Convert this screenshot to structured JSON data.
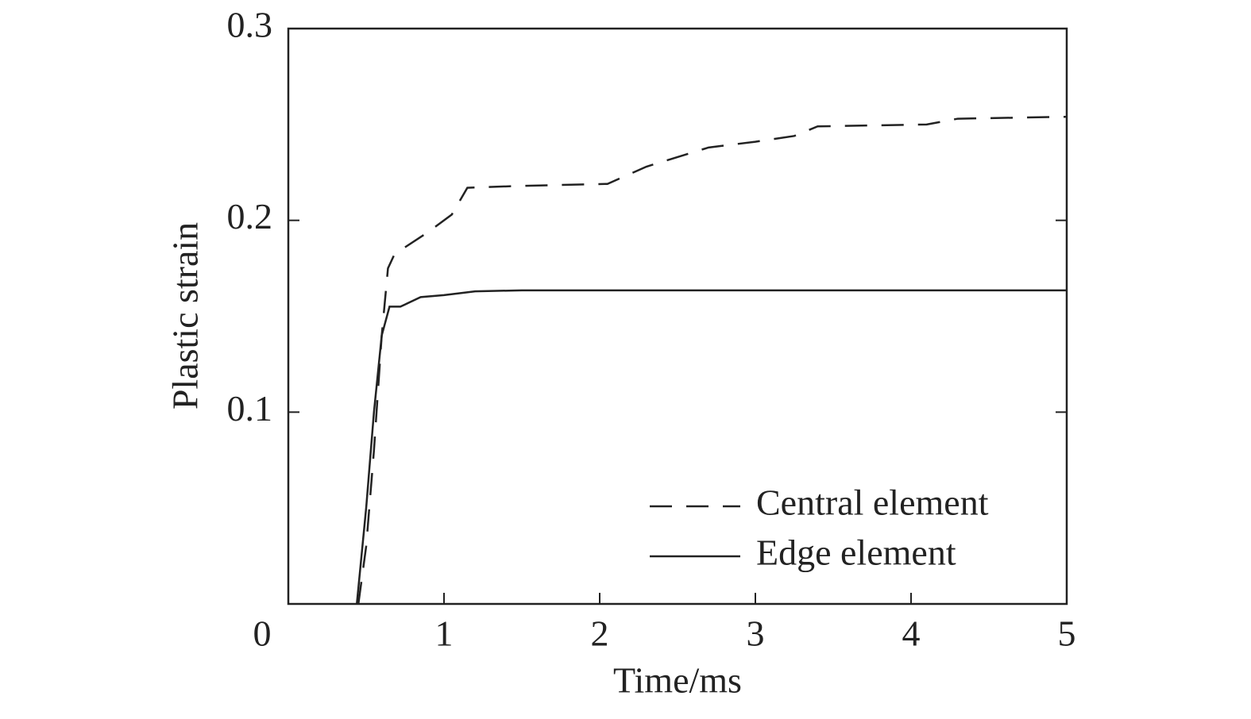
{
  "chart_data": {
    "type": "line",
    "xlabel": "Time/ms",
    "ylabel": "Plastic strain",
    "xlim": [
      0,
      5
    ],
    "ylim": [
      0,
      0.3
    ],
    "xticks": [
      0,
      1,
      2,
      3,
      4,
      5
    ],
    "yticks": [
      0.1,
      0.2,
      0.3
    ],
    "legend": "lower right",
    "series": [
      {
        "name": "Central element",
        "color": "#222222",
        "dash": true,
        "x": [
          0.45,
          0.5,
          0.55,
          0.6,
          0.64,
          0.68,
          0.75,
          0.9,
          1.05,
          1.15,
          1.5,
          2.05,
          2.3,
          2.7,
          3.0,
          3.25,
          3.4,
          4.1,
          4.3,
          5.0
        ],
        "values": [
          0,
          0.03,
          0.08,
          0.14,
          0.175,
          0.182,
          0.186,
          0.194,
          0.203,
          0.217,
          0.218,
          0.219,
          0.228,
          0.238,
          0.241,
          0.244,
          0.249,
          0.25,
          0.253,
          0.254
        ]
      },
      {
        "name": "Edge element",
        "color": "#222222",
        "dash": false,
        "x": [
          0.44,
          0.5,
          0.55,
          0.6,
          0.65,
          0.72,
          0.85,
          1.0,
          1.2,
          1.5,
          5.0
        ],
        "values": [
          0,
          0.05,
          0.1,
          0.14,
          0.155,
          0.155,
          0.16,
          0.161,
          0.163,
          0.1635,
          0.1635
        ]
      }
    ]
  }
}
